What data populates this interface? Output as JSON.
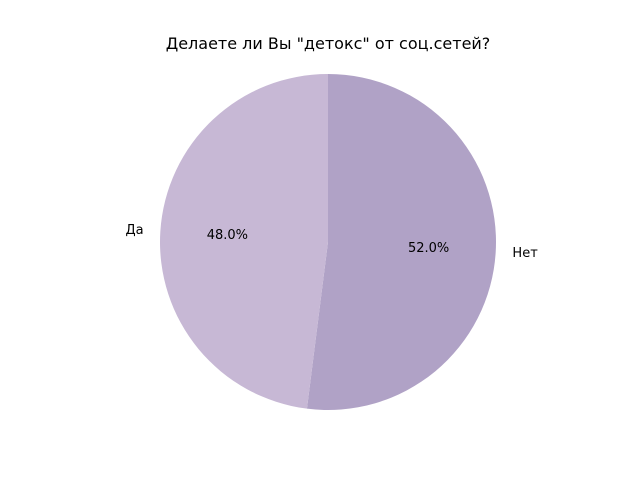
{
  "chart_data": {
    "type": "pie",
    "title": "Делаете ли Вы \"детокс\" от соц.сетей?",
    "slices": [
      {
        "label": "Нет",
        "value": 52.0,
        "pct_label": "52.0%",
        "color": "#b0a2c6"
      },
      {
        "label": "Да",
        "value": 48.0,
        "pct_label": "48.0%",
        "color": "#c7b8d5"
      }
    ],
    "start_angle_deg": 90,
    "direction": "clockwise",
    "legend": "none"
  }
}
